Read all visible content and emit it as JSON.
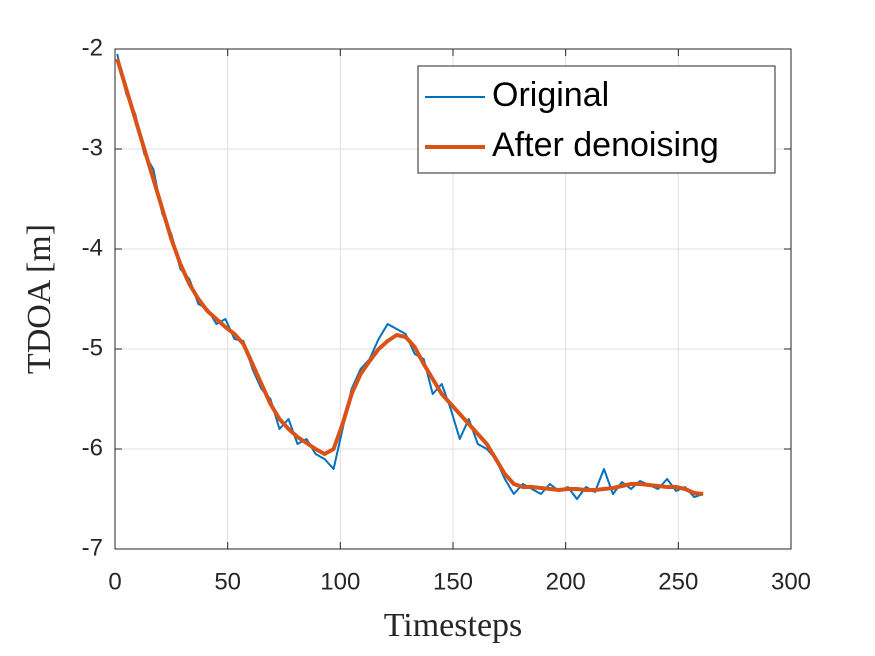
{
  "chart_data": {
    "type": "line",
    "x_label": "Timesteps",
    "y_label": "TDOA [m]",
    "x": [
      1,
      5,
      9,
      13,
      17,
      21,
      25,
      29,
      33,
      37,
      41,
      45,
      49,
      53,
      57,
      61,
      65,
      69,
      73,
      77,
      81,
      85,
      89,
      93,
      97,
      101,
      105,
      109,
      113,
      117,
      121,
      125,
      129,
      133,
      137,
      141,
      145,
      149,
      153,
      157,
      161,
      165,
      169,
      173,
      177,
      181,
      185,
      189,
      193,
      197,
      201,
      205,
      209,
      213,
      217,
      221,
      225,
      229,
      233,
      237,
      241,
      245,
      249,
      253,
      257,
      261
    ],
    "series": [
      {
        "name": "Original",
        "color": "#0072bd",
        "width": 2,
        "values": [
          -2.05,
          -2.45,
          -2.65,
          -3.05,
          -3.2,
          -3.65,
          -3.85,
          -4.2,
          -4.3,
          -4.55,
          -4.6,
          -4.75,
          -4.7,
          -4.9,
          -4.92,
          -5.2,
          -5.4,
          -5.5,
          -5.8,
          -5.7,
          -5.95,
          -5.9,
          -6.05,
          -6.1,
          -6.2,
          -5.8,
          -5.4,
          -5.2,
          -5.1,
          -4.9,
          -4.75,
          -4.8,
          -4.85,
          -5.05,
          -5.1,
          -5.45,
          -5.35,
          -5.6,
          -5.9,
          -5.7,
          -5.95,
          -6.0,
          -6.1,
          -6.3,
          -6.45,
          -6.35,
          -6.4,
          -6.45,
          -6.35,
          -6.42,
          -6.38,
          -6.5,
          -6.38,
          -6.43,
          -6.2,
          -6.45,
          -6.33,
          -6.4,
          -6.32,
          -6.36,
          -6.4,
          -6.3,
          -6.42,
          -6.38,
          -6.48,
          -6.45
        ]
      },
      {
        "name": "After denoising",
        "color": "#d95319",
        "width": 4,
        "values": [
          -2.1,
          -2.4,
          -2.7,
          -3.0,
          -3.3,
          -3.6,
          -3.9,
          -4.15,
          -4.35,
          -4.5,
          -4.62,
          -4.7,
          -4.78,
          -4.85,
          -4.95,
          -5.15,
          -5.35,
          -5.55,
          -5.7,
          -5.8,
          -5.88,
          -5.94,
          -6.0,
          -6.05,
          -6.0,
          -5.75,
          -5.45,
          -5.25,
          -5.12,
          -5.0,
          -4.92,
          -4.86,
          -4.88,
          -4.98,
          -5.15,
          -5.3,
          -5.45,
          -5.55,
          -5.65,
          -5.75,
          -5.85,
          -5.95,
          -6.1,
          -6.25,
          -6.35,
          -6.38,
          -6.38,
          -6.39,
          -6.4,
          -6.41,
          -6.4,
          -6.4,
          -6.41,
          -6.41,
          -6.4,
          -6.39,
          -6.37,
          -6.35,
          -6.35,
          -6.36,
          -6.37,
          -6.38,
          -6.38,
          -6.4,
          -6.44,
          -6.45
        ]
      }
    ],
    "xlim": [
      0,
      300
    ],
    "xticks": [
      0,
      50,
      100,
      150,
      200,
      250,
      300
    ],
    "ylim": [
      -7,
      -2
    ],
    "yticks": [
      -7,
      -6,
      -5,
      -4,
      -3,
      -2
    ],
    "grid": true,
    "legend": "upper right"
  }
}
